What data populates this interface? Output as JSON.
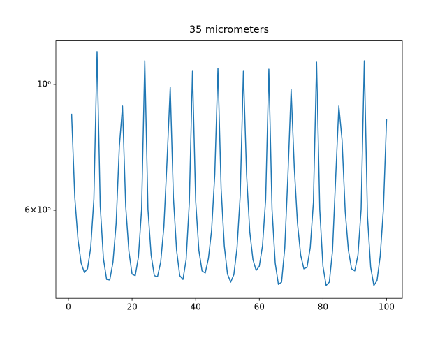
{
  "chart_data": {
    "type": "line",
    "title": "35 micrometers",
    "x": [
      1,
      2,
      3,
      4,
      5,
      6,
      7,
      8,
      9,
      10,
      11,
      12,
      13,
      14,
      15,
      16,
      17,
      18,
      19,
      20,
      21,
      22,
      23,
      24,
      25,
      26,
      27,
      28,
      29,
      30,
      31,
      32,
      33,
      34,
      35,
      36,
      37,
      38,
      39,
      40,
      41,
      42,
      43,
      44,
      45,
      46,
      47,
      48,
      49,
      50,
      51,
      52,
      53,
      54,
      55,
      56,
      57,
      58,
      59,
      60,
      61,
      62,
      63,
      64,
      65,
      66,
      67,
      68,
      69,
      70,
      71,
      72,
      73,
      74,
      75,
      76,
      77,
      78,
      79,
      80,
      81,
      82,
      83,
      84,
      85,
      86,
      87,
      88,
      89,
      90,
      91,
      92,
      93,
      94,
      95,
      96,
      97,
      98,
      99,
      100
    ],
    "series": [
      {
        "color": "#1f77b4",
        "values": [
          888000,
          632000,
          533000,
          484000,
          466000,
          473000,
          515000,
          628000,
          1143000,
          610000,
          493000,
          453000,
          452000,
          486000,
          569000,
          777000,
          916000,
          610000,
          508000,
          463000,
          460000,
          496000,
          602000,
          1101000,
          602000,
          500000,
          460000,
          458000,
          486000,
          561000,
          734000,
          989000,
          632000,
          510000,
          460000,
          453000,
          491000,
          619000,
          1058000,
          623000,
          510000,
          469000,
          465000,
          493000,
          553000,
          693000,
          1067000,
          655000,
          519000,
          463000,
          448000,
          462000,
          515000,
          637000,
          1058000,
          693000,
          550000,
          491000,
          470000,
          478000,
          519000,
          628000,
          1064000,
          602000,
          484000,
          444000,
          448000,
          515000,
          693000,
          980000,
          713000,
          569000,
          500000,
          473000,
          476000,
          515000,
          619000,
          1095000,
          602000,
          478000,
          442000,
          448000,
          508000,
          684000,
          916000,
          799000,
          597000,
          510000,
          473000,
          469000,
          500000,
          602000,
          1101000,
          585000,
          476000,
          442000,
          451000,
          498000,
          602000,
          868000
        ]
      }
    ],
    "xlim": [
      -3.95,
      104.95
    ],
    "xticks": [
      0,
      20,
      40,
      60,
      80,
      100
    ],
    "ylim": [
      419500,
      1197000
    ],
    "yscale": "log",
    "yticks": [
      {
        "value": 1000000,
        "label": "10⁶"
      },
      {
        "value": 600000,
        "label": "6×10⁵"
      }
    ]
  }
}
